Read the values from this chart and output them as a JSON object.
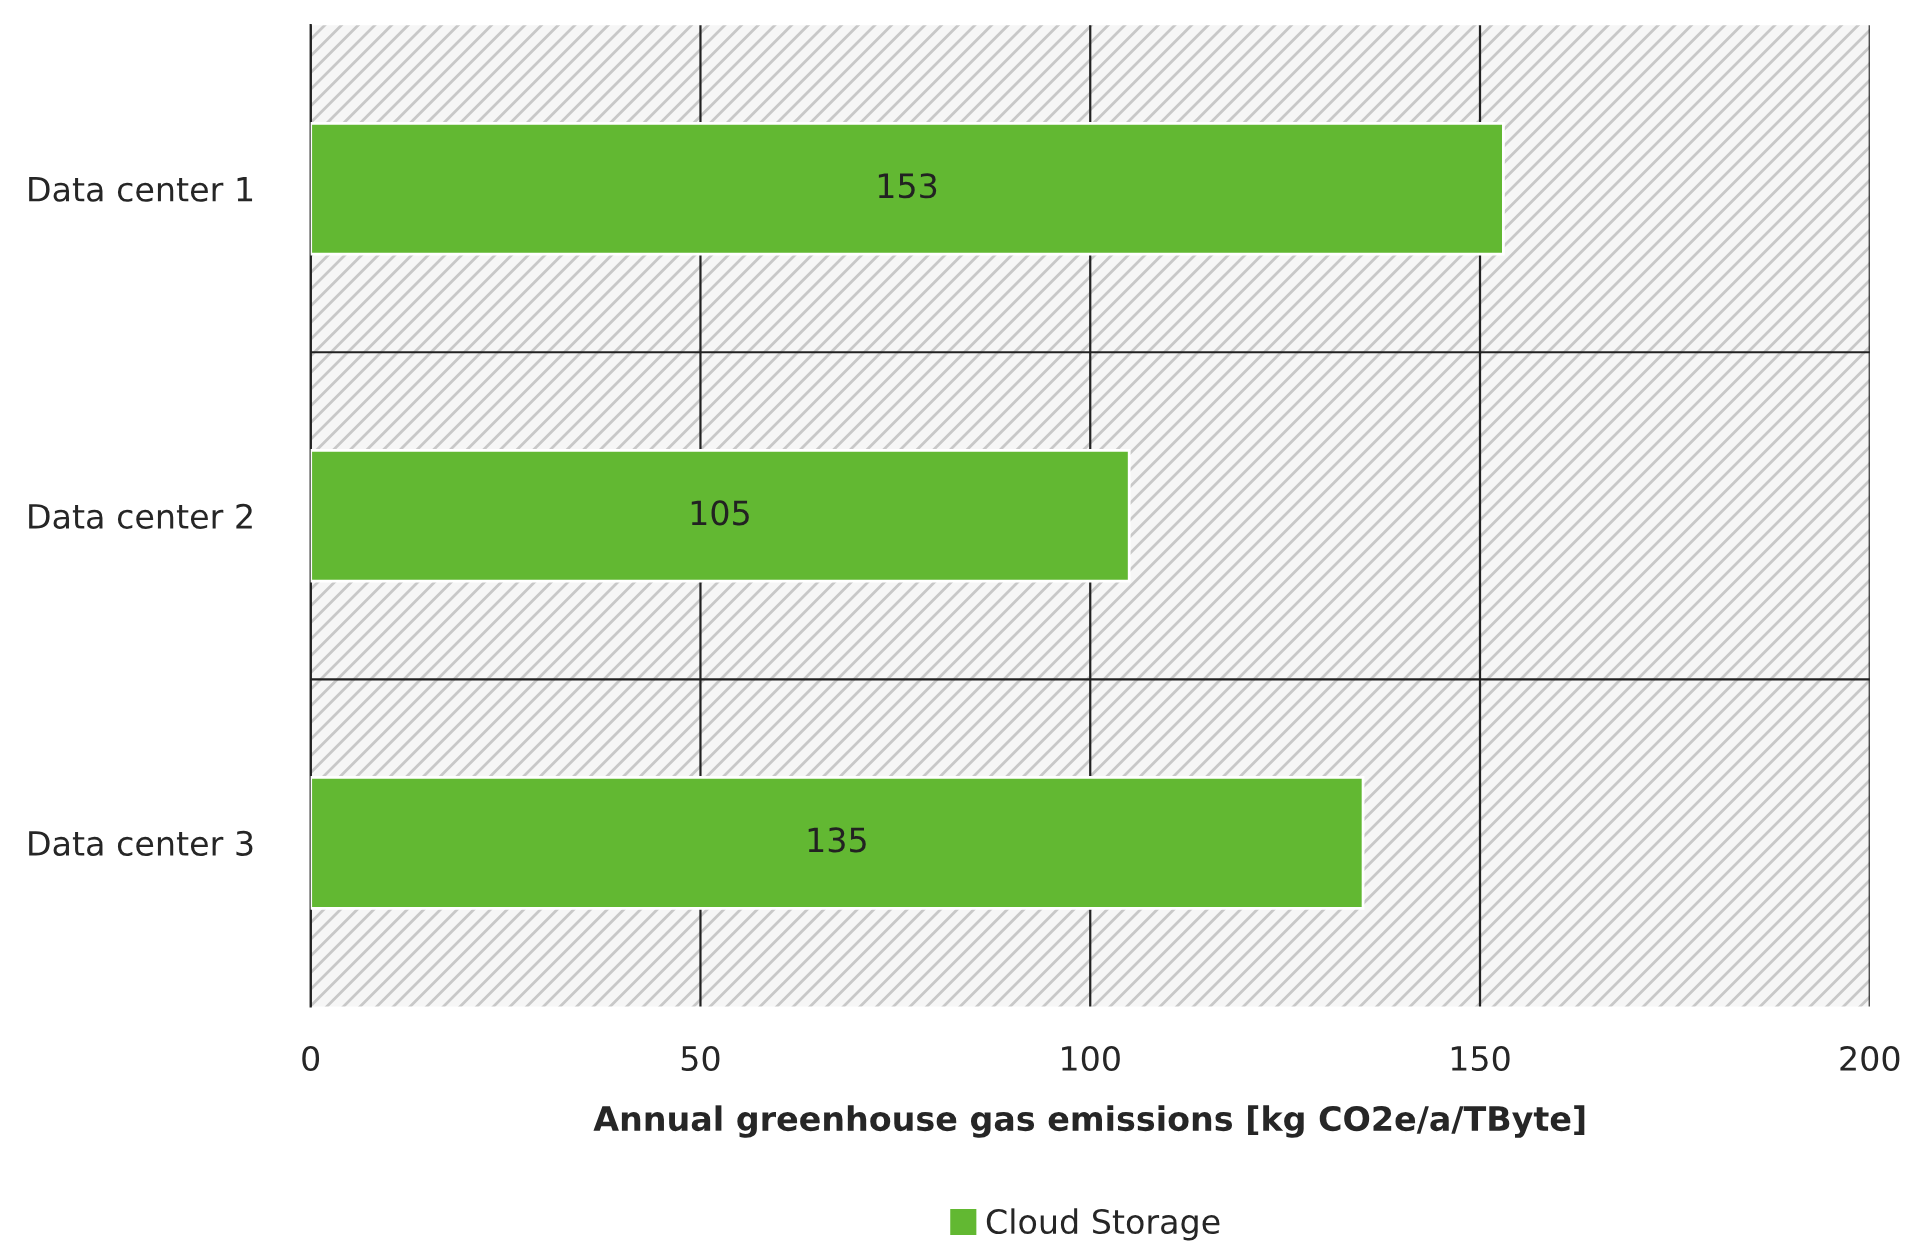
{
  "chart_data": {
    "type": "bar",
    "orientation": "horizontal",
    "xlabel": "Annual greenhouse gas emissions [kg CO2e/a/TByte]",
    "categories": [
      "Data center 1",
      "Data center 2",
      "Data center 3"
    ],
    "series": [
      {
        "name": "Cloud Storage",
        "color": "#62b832",
        "values": [
          153,
          105,
          135
        ]
      }
    ],
    "xlim": [
      0,
      200
    ],
    "xticks": [
      0,
      50,
      100,
      150,
      200
    ],
    "grid": true,
    "legend": "bottom",
    "data_labels": true
  }
}
